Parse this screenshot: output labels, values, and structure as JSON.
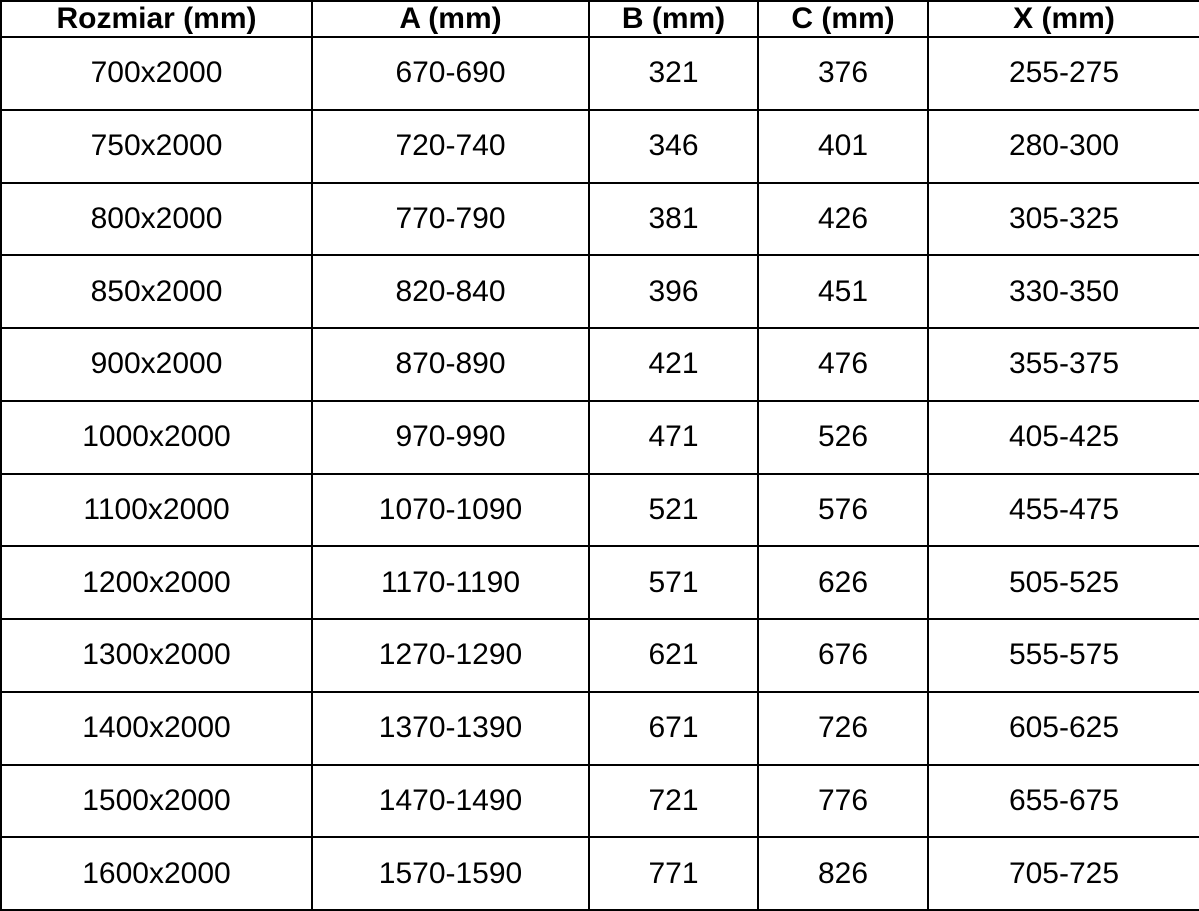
{
  "table": {
    "headers": [
      "Rozmiar (mm)",
      "A (mm)",
      "B (mm)",
      "C (mm)",
      "X (mm)"
    ],
    "rows": [
      [
        "700x2000",
        "670-690",
        "321",
        "376",
        "255-275"
      ],
      [
        "750x2000",
        "720-740",
        "346",
        "401",
        "280-300"
      ],
      [
        "800x2000",
        "770-790",
        "381",
        "426",
        "305-325"
      ],
      [
        "850x2000",
        "820-840",
        "396",
        "451",
        "330-350"
      ],
      [
        "900x2000",
        "870-890",
        "421",
        "476",
        "355-375"
      ],
      [
        "1000x2000",
        "970-990",
        "471",
        "526",
        "405-425"
      ],
      [
        "1100x2000",
        "1070-1090",
        "521",
        "576",
        "455-475"
      ],
      [
        "1200x2000",
        "1170-1190",
        "571",
        "626",
        "505-525"
      ],
      [
        "1300x2000",
        "1270-1290",
        "621",
        "676",
        "555-575"
      ],
      [
        "1400x2000",
        "1370-1390",
        "671",
        "726",
        "605-625"
      ],
      [
        "1500x2000",
        "1470-1490",
        "721",
        "776",
        "655-675"
      ],
      [
        "1600x2000",
        "1570-1590",
        "771",
        "826",
        "705-725"
      ]
    ]
  },
  "chart_data": {
    "type": "table",
    "title": "",
    "columns": [
      "Rozmiar (mm)",
      "A (mm)",
      "B (mm)",
      "C (mm)",
      "X (mm)"
    ],
    "rows": [
      [
        "700x2000",
        "670-690",
        "321",
        "376",
        "255-275"
      ],
      [
        "750x2000",
        "720-740",
        "346",
        "401",
        "280-300"
      ],
      [
        "800x2000",
        "770-790",
        "381",
        "426",
        "305-325"
      ],
      [
        "850x2000",
        "820-840",
        "396",
        "451",
        "330-350"
      ],
      [
        "900x2000",
        "870-890",
        "421",
        "476",
        "355-375"
      ],
      [
        "1000x2000",
        "970-990",
        "471",
        "526",
        "405-425"
      ],
      [
        "1100x2000",
        "1070-1090",
        "521",
        "576",
        "455-475"
      ],
      [
        "1200x2000",
        "1170-1190",
        "571",
        "626",
        "505-525"
      ],
      [
        "1300x2000",
        "1270-1290",
        "621",
        "676",
        "555-575"
      ],
      [
        "1400x2000",
        "1370-1390",
        "671",
        "726",
        "605-625"
      ],
      [
        "1500x2000",
        "1470-1490",
        "721",
        "776",
        "655-675"
      ],
      [
        "1600x2000",
        "1570-1590",
        "771",
        "826",
        "705-725"
      ]
    ]
  },
  "colors": {
    "border": "#000000",
    "text": "#000000",
    "background": "#ffffff"
  }
}
